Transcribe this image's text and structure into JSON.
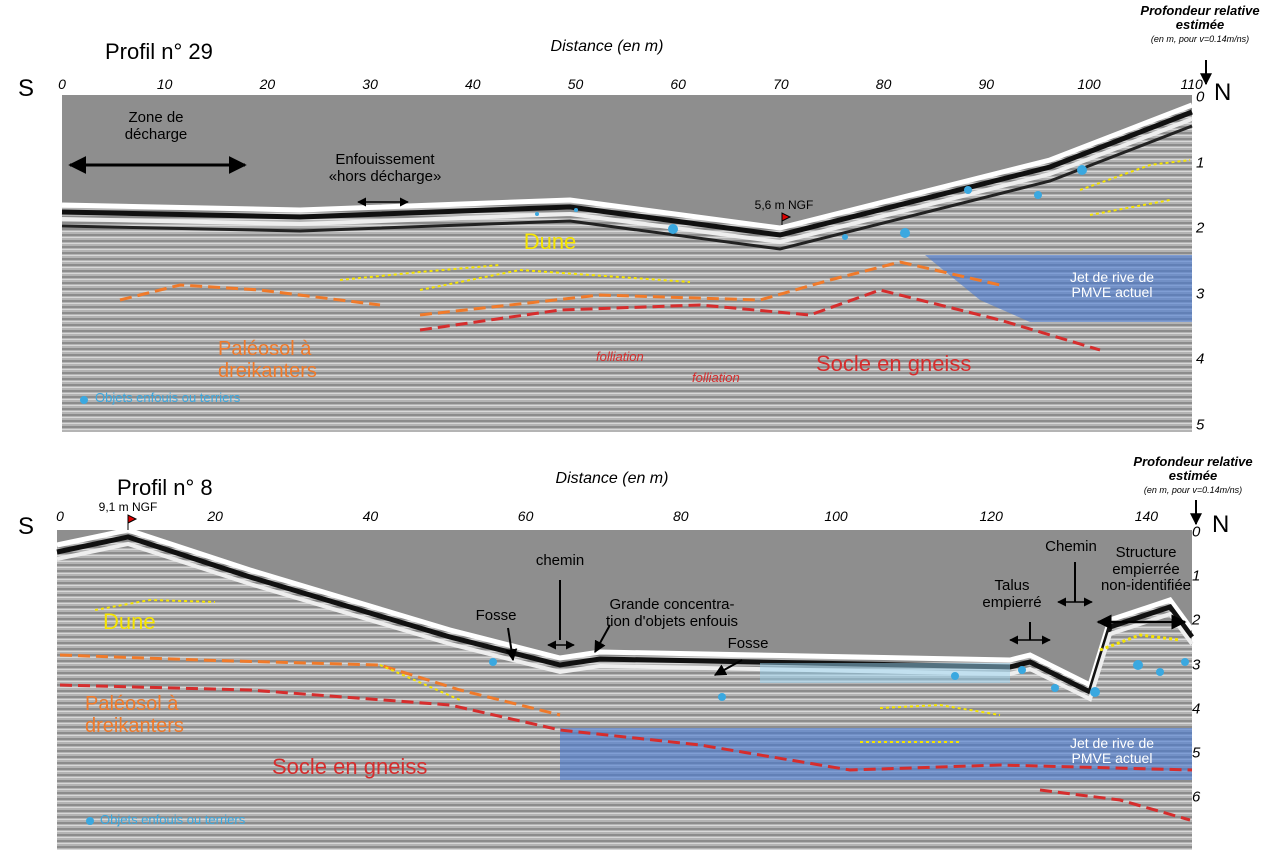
{
  "panels": [
    {
      "title": "Profil n° 29",
      "x_axis_label": "Distance (en m)",
      "depth_label": "Profondeur relative\nestimée",
      "depth_note": "(en m, pour v=0.14m/ns)",
      "left_end": "S",
      "right_end": "N",
      "xticks": [
        0,
        10,
        20,
        30,
        40,
        50,
        60,
        70,
        80,
        90,
        100,
        110
      ],
      "depth_ticks": [
        0,
        1,
        2,
        3,
        4,
        5
      ],
      "annotations": {
        "zone": "Zone de\ndécharge",
        "enfouissement": "Enfouissement\n«hors décharge»",
        "ngf": "5,6 m NGF",
        "dune": "Dune",
        "jet": "Jet de rive de\nPMVE actuel",
        "paleosol": "Paléosol à\ndreikanters",
        "folliation_1": "folliation",
        "folliation_2": "folliation",
        "socle": "Socle en gneiss",
        "objets": "Objets enfouis ou terriers"
      }
    },
    {
      "title": "Profil n° 8",
      "x_axis_label": "Distance (en m)",
      "depth_label": "Profondeur relative\nestimée",
      "depth_note": "(en m, pour v=0.14m/ns)",
      "left_end": "S",
      "right_end": "N",
      "xticks": [
        0,
        20,
        40,
        60,
        80,
        100,
        120,
        140
      ],
      "depth_ticks": [
        0,
        1,
        2,
        3,
        4,
        5,
        6
      ],
      "annotations": {
        "ngf": "9,1 m NGF",
        "dune": "Dune",
        "fosse_1": "Fosse",
        "chemin_1": "chemin",
        "concentration": "Grande concentra-\ntion d'objets enfouis",
        "fosse_2": "Fosse",
        "talus": "Talus\nempierré",
        "chemin_2": "Chemin",
        "structure": "Structure\nempierrée\nnon-identifiée",
        "jet": "Jet de rive de\nPMVE actuel",
        "paleosol": "Paléosol à\ndreikanters",
        "socle": "Socle en gneiss",
        "objets": "Objets enfouis ou terriers"
      }
    }
  ]
}
